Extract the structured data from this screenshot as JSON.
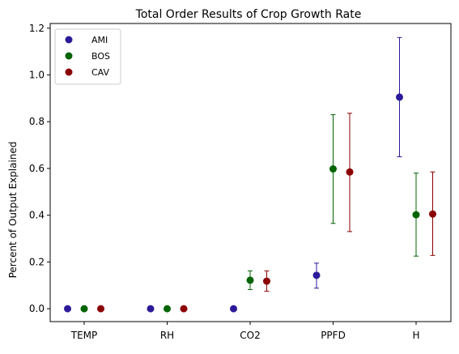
{
  "chart_data": {
    "type": "scatter",
    "title": "Total Order Results of Crop Growth Rate",
    "xlabel": "",
    "ylabel": "Percent of Output Explained",
    "categories": [
      "TEMP",
      "RH",
      "CO2",
      "PPFD",
      "H"
    ],
    "ylim": [
      -0.055,
      1.22
    ],
    "yticks": [
      0.0,
      0.2,
      0.4,
      0.6,
      0.8,
      1.0,
      1.2
    ],
    "ytick_labels": [
      "0.0",
      "0.2",
      "0.4",
      "0.6",
      "0.8",
      "1.0",
      "1.2"
    ],
    "grid": false,
    "legend_position": "top-left",
    "series": [
      {
        "name": "AMI",
        "color": "#2a1a9a",
        "values": [
          0.0,
          0.0,
          0.0,
          0.143,
          0.905
        ],
        "err_low": [
          null,
          null,
          null,
          0.088,
          0.65
        ],
        "err_high": [
          null,
          null,
          null,
          0.195,
          1.16
        ]
      },
      {
        "name": "BOS",
        "color": "#006400",
        "values": [
          0.0,
          0.0,
          0.122,
          0.598,
          0.402
        ],
        "err_low": [
          null,
          null,
          0.082,
          0.365,
          0.225
        ],
        "err_high": [
          null,
          null,
          0.162,
          0.83,
          0.58
        ]
      },
      {
        "name": "CAV",
        "color": "#8b0000",
        "values": [
          0.0,
          0.0,
          0.118,
          0.585,
          0.405
        ],
        "err_low": [
          null,
          null,
          0.075,
          0.33,
          0.228
        ],
        "err_high": [
          null,
          null,
          0.162,
          0.836,
          0.585
        ]
      }
    ]
  }
}
